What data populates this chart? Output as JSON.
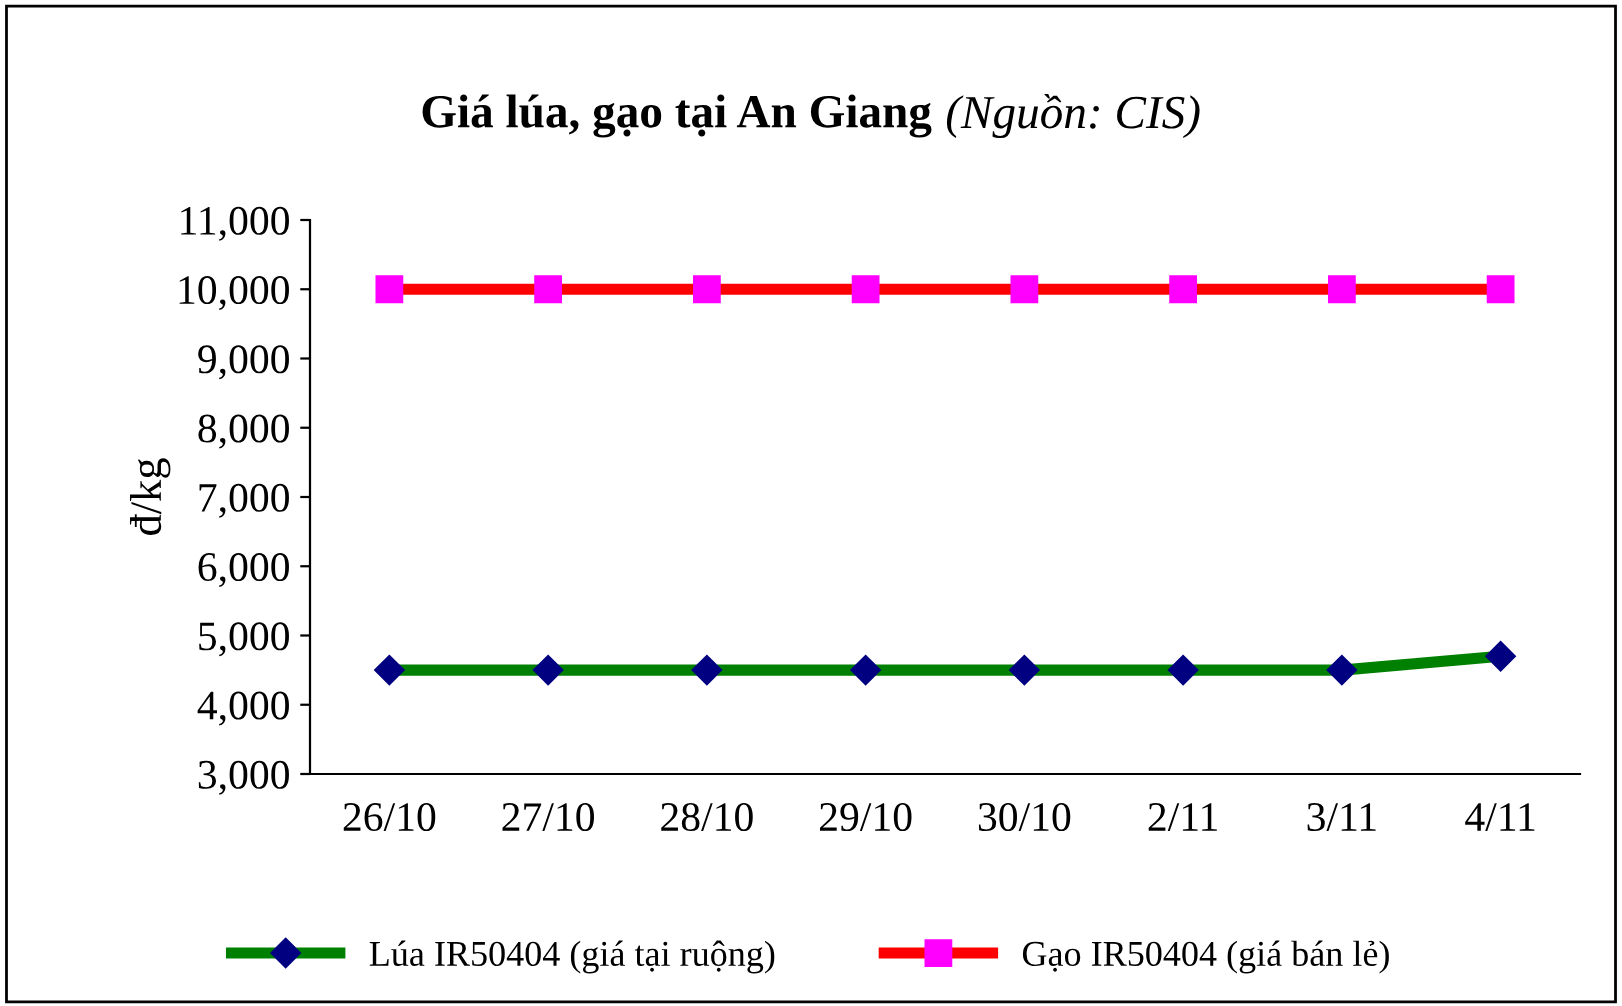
{
  "chart_data": {
    "type": "line",
    "title": "Giá lúa, gạo tại An Giang",
    "annotations": [
      "(Nguồn: CIS)"
    ],
    "ylabel": "đ/kg",
    "categories": [
      "26/10",
      "27/10",
      "28/10",
      "29/10",
      "30/10",
      "2/11",
      "3/11",
      "4/11"
    ],
    "series": [
      {
        "name": "Lúa IR50404 (giá tại ruộng)",
        "color": "#008000",
        "marker": "diamond",
        "colors": [
          "#000080",
          "#000080",
          "#000080",
          "#000080",
          "#000080",
          "#000080",
          "#000080",
          "#000080"
        ],
        "values": [
          4500,
          4500,
          4500,
          4500,
          4500,
          4500,
          4500,
          4700
        ]
      },
      {
        "name": "Gạo IR50404 (giá bán lẻ)",
        "color": "#ff0000",
        "marker": "square",
        "colors": [
          "#ff00ff",
          "#ff00ff",
          "#ff00ff",
          "#ff00ff",
          "#ff00ff",
          "#ff00ff",
          "#ff00ff",
          "#ff00ff"
        ],
        "values": [
          10000,
          10000,
          10000,
          10000,
          10000,
          10000,
          10000,
          10000
        ]
      }
    ],
    "ylim": [
      3000,
      11000
    ],
    "yticks": [
      {
        "value": 3000,
        "label": "3,000"
      },
      {
        "value": 4000,
        "label": "4,000"
      },
      {
        "value": 5000,
        "label": "5,000"
      },
      {
        "value": 6000,
        "label": "6,000"
      },
      {
        "value": 7000,
        "label": "7,000"
      },
      {
        "value": 8000,
        "label": "8,000"
      },
      {
        "value": 9000,
        "label": "9,000"
      },
      {
        "value": 10000,
        "label": "10,000"
      },
      {
        "value": 11000,
        "label": "11,000"
      }
    ],
    "grid": false,
    "legend": "bottom",
    "line_style": "solid"
  }
}
